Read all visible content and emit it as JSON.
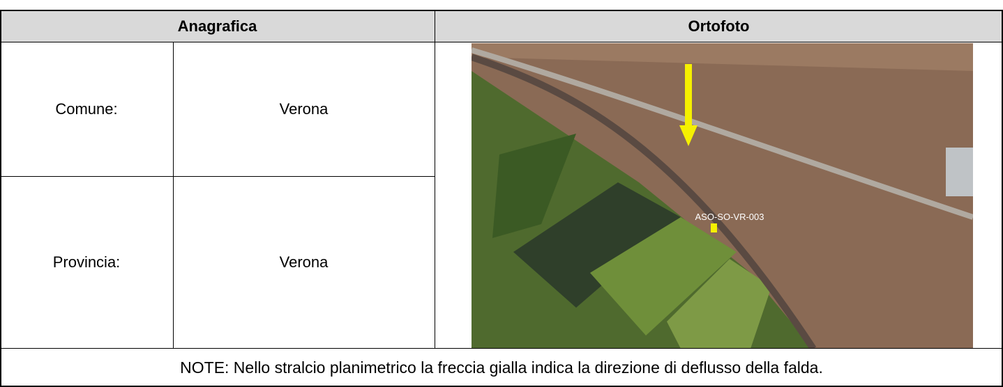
{
  "table": {
    "headers": [
      "Anagrafica",
      "Ortofoto"
    ],
    "rows": [
      [
        "Comune:",
        "Verona"
      ],
      [
        "Provincia:",
        "Verona"
      ]
    ],
    "note": "NOTE: Nello stralcio planimetrico la freccia gialla indica la direzione di deflusso della falda."
  },
  "image": {
    "label": "ASO-SO-VR-003"
  }
}
